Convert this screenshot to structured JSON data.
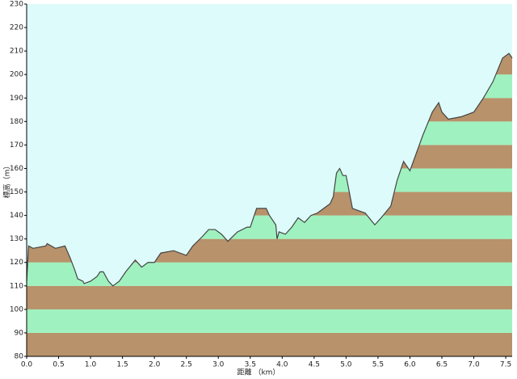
{
  "chart_data": {
    "type": "area",
    "xlabel": "距離 （km）",
    "ylabel": "標高（m）",
    "x": [
      0.0,
      0.03,
      0.1,
      0.3,
      0.32,
      0.45,
      0.6,
      0.68,
      0.75,
      0.8,
      0.88,
      0.9,
      1.0,
      1.1,
      1.15,
      1.2,
      1.28,
      1.35,
      1.45,
      1.55,
      1.7,
      1.8,
      1.9,
      2.0,
      2.1,
      2.3,
      2.5,
      2.6,
      2.75,
      2.85,
      2.95,
      3.05,
      3.15,
      3.3,
      3.45,
      3.5,
      3.6,
      3.75,
      3.8,
      3.9,
      3.92,
      3.95,
      4.05,
      4.15,
      4.25,
      4.35,
      4.45,
      4.55,
      4.65,
      4.75,
      4.8,
      4.85,
      4.9,
      4.95,
      5.0,
      5.1,
      5.2,
      5.3,
      5.45,
      5.55,
      5.7,
      5.8,
      5.9,
      6.0,
      6.2,
      6.35,
      6.45,
      6.5,
      6.6,
      6.8,
      7.0,
      7.15,
      7.3,
      7.45,
      7.55,
      7.6
    ],
    "values": [
      112,
      127,
      126,
      127,
      128,
      126,
      127,
      122,
      117,
      113,
      112,
      111,
      112,
      114,
      116,
      116,
      112,
      110,
      112,
      116,
      121,
      118,
      120,
      120,
      124,
      125,
      123,
      127,
      131,
      134,
      134,
      132,
      129,
      133,
      135,
      135,
      143,
      143,
      140,
      136,
      130,
      133,
      132,
      135,
      139,
      137,
      140,
      141,
      143,
      145,
      148,
      158,
      160,
      157,
      157,
      143,
      142,
      141,
      136,
      139,
      144,
      155,
      163,
      159,
      174,
      184,
      188,
      184,
      181,
      182,
      184,
      190,
      197,
      207,
      209,
      207
    ],
    "xlim": [
      0,
      7.6
    ],
    "ylim": [
      80,
      230
    ],
    "xticks": [
      {
        "value": 0,
        "label": "0.0"
      },
      {
        "value": 0.5,
        "label": "0.5"
      },
      {
        "value": 1,
        "label": "1.0"
      },
      {
        "value": 1.5,
        "label": "1.5"
      },
      {
        "value": 2,
        "label": "2.0"
      },
      {
        "value": 2.5,
        "label": "2.5"
      },
      {
        "value": 3,
        "label": "3.0"
      },
      {
        "value": 3.5,
        "label": "3.5"
      },
      {
        "value": 4,
        "label": "4.0"
      },
      {
        "value": 4.5,
        "label": "4.5"
      },
      {
        "value": 5,
        "label": "5.0"
      },
      {
        "value": 5.5,
        "label": "5.5"
      },
      {
        "value": 6,
        "label": "6.0"
      },
      {
        "value": 6.5,
        "label": "6.5"
      },
      {
        "value": 7,
        "label": "7.0"
      },
      {
        "value": 7.5,
        "label": "7.5"
      }
    ],
    "yticks": [
      80,
      90,
      100,
      110,
      120,
      130,
      140,
      150,
      160,
      170,
      180,
      190,
      200,
      210,
      220,
      230
    ],
    "band_colors": [
      "#b8926a",
      "#9ff2bf"
    ],
    "background": "#ddfbfb",
    "line_color": "#444444"
  }
}
